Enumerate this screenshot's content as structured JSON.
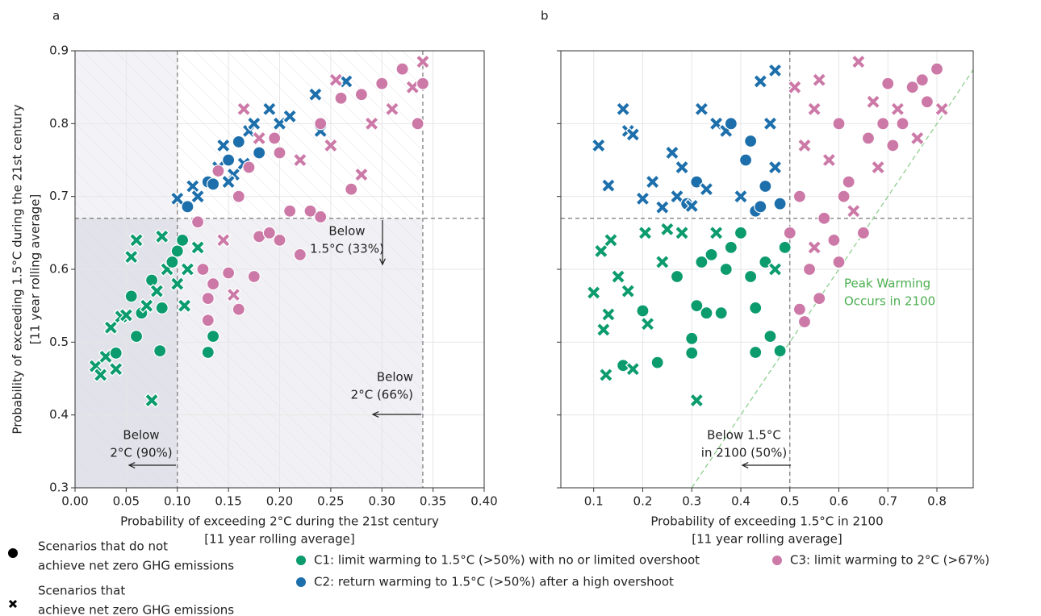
{
  "chart_data": [
    {
      "type": "scatter",
      "label": "a",
      "xlabel": [
        "Probability of exceeding 2°C during the 21st century",
        "[11 year rolling average]"
      ],
      "ylabel": [
        "Probability of exceeding 1.5°C during the 21st century",
        "[11 year rolling average]"
      ],
      "xlim": [
        0,
        0.4
      ],
      "ylim": [
        0.3,
        0.9
      ],
      "xticks": [
        {
          "value": 0,
          "label": "0.00"
        },
        {
          "value": 0.05,
          "label": "0.05"
        },
        {
          "value": 0.1,
          "label": "0.10"
        },
        {
          "value": 0.15,
          "label": "0.15"
        },
        {
          "value": 0.2,
          "label": "0.20"
        },
        {
          "value": 0.25,
          "label": "0.25"
        },
        {
          "value": 0.3,
          "label": "0.30"
        },
        {
          "value": 0.35,
          "label": "0.35"
        },
        {
          "value": 0.4,
          "label": "0.40"
        }
      ],
      "yticks": [
        0.3,
        0.4,
        0.5,
        0.6,
        0.7,
        0.8,
        0.9
      ],
      "show_ytick_labels": true,
      "grid": true,
      "shade": true,
      "vlines": [
        0.1,
        0.34
      ],
      "hlines": [
        0.67
      ],
      "annotations": [
        {
          "lines": [
            "Below",
            "1.5°C (33%)"
          ]
        },
        {
          "lines": [
            "Below",
            "2°C (66%)"
          ]
        },
        {
          "lines": [
            "Below",
            "2°C (90%)"
          ]
        }
      ],
      "series": [
        {
          "name": "C1: limit warming to 1.5°C (>50%) with no or limited overshoot",
          "color": "#0b9b6d",
          "x": [
            0.02,
            0.025,
            0.03,
            0.035,
            0.04,
            0.04,
            0.045,
            0.05,
            0.055,
            0.055,
            0.06,
            0.06,
            0.065,
            0.07,
            0.075,
            0.075,
            0.08,
            0.083,
            0.085,
            0.085,
            0.09,
            0.095,
            0.1,
            0.1,
            0.105,
            0.107,
            0.11,
            0.13,
            0.135,
            0.12
          ],
          "values": [
            0.467,
            0.455,
            0.48,
            0.52,
            0.485,
            0.463,
            0.535,
            0.537,
            0.563,
            0.617,
            0.508,
            0.64,
            0.54,
            0.55,
            0.585,
            0.42,
            0.57,
            0.488,
            0.547,
            0.645,
            0.6,
            0.61,
            0.625,
            0.58,
            0.64,
            0.55,
            0.6,
            0.486,
            0.508,
            0.63
          ],
          "net_zero": [
            true,
            true,
            true,
            true,
            false,
            true,
            true,
            true,
            false,
            true,
            false,
            true,
            false,
            true,
            false,
            true,
            true,
            false,
            false,
            true,
            true,
            false,
            false,
            true,
            false,
            true,
            true,
            false,
            false,
            true
          ]
        },
        {
          "name": "C2: return warming to 1.5°C (>50%) after a high overshoot",
          "color": "#1d6fab",
          "x": [
            0.1,
            0.11,
            0.115,
            0.12,
            0.13,
            0.135,
            0.14,
            0.145,
            0.15,
            0.155,
            0.16,
            0.165,
            0.17,
            0.175,
            0.18,
            0.19,
            0.2,
            0.21,
            0.235,
            0.24,
            0.265,
            0.15
          ],
          "values": [
            0.697,
            0.686,
            0.714,
            0.7,
            0.72,
            0.717,
            0.74,
            0.77,
            0.75,
            0.73,
            0.775,
            0.745,
            0.79,
            0.8,
            0.76,
            0.82,
            0.8,
            0.81,
            0.84,
            0.79,
            0.858,
            0.72
          ],
          "net_zero": [
            true,
            false,
            true,
            true,
            false,
            false,
            true,
            true,
            false,
            true,
            false,
            true,
            true,
            true,
            false,
            true,
            true,
            true,
            true,
            true,
            true,
            true
          ]
        },
        {
          "name": "C3: limit warming to 2°C (>67%)",
          "color": "#cc79a7",
          "x": [
            0.12,
            0.125,
            0.13,
            0.13,
            0.135,
            0.14,
            0.145,
            0.15,
            0.155,
            0.16,
            0.16,
            0.17,
            0.175,
            0.18,
            0.18,
            0.19,
            0.2,
            0.2,
            0.21,
            0.22,
            0.23,
            0.24,
            0.24,
            0.25,
            0.26,
            0.27,
            0.28,
            0.28,
            0.29,
            0.3,
            0.31,
            0.32,
            0.33,
            0.335,
            0.34,
            0.34,
            0.22,
            0.165,
            0.195,
            0.255
          ],
          "values": [
            0.665,
            0.6,
            0.53,
            0.56,
            0.58,
            0.735,
            0.64,
            0.595,
            0.565,
            0.545,
            0.7,
            0.74,
            0.59,
            0.645,
            0.78,
            0.65,
            0.64,
            0.76,
            0.68,
            0.75,
            0.68,
            0.672,
            0.8,
            0.77,
            0.835,
            0.71,
            0.73,
            0.84,
            0.8,
            0.855,
            0.82,
            0.875,
            0.85,
            0.8,
            0.885,
            0.855,
            0.62,
            0.82,
            0.78,
            0.86
          ],
          "net_zero": [
            false,
            false,
            false,
            false,
            false,
            false,
            true,
            false,
            true,
            false,
            false,
            false,
            false,
            false,
            true,
            false,
            false,
            false,
            false,
            true,
            false,
            false,
            false,
            true,
            false,
            false,
            true,
            false,
            true,
            false,
            true,
            false,
            true,
            false,
            true,
            false,
            false,
            true,
            false,
            true
          ]
        }
      ]
    },
    {
      "type": "scatter",
      "label": "b",
      "xlabel": [
        "Probability of exceeding 1.5°C in 2100",
        "[11 year rolling average]"
      ],
      "xlim": [
        0.033,
        0.874
      ],
      "ylim": [
        0.3,
        0.9
      ],
      "xticks": [
        0.1,
        0.2,
        0.3,
        0.4,
        0.5,
        0.6,
        0.7,
        0.8
      ],
      "yticks": [
        0.3,
        0.4,
        0.5,
        0.6,
        0.7,
        0.8,
        0.9
      ],
      "show_ytick_labels": false,
      "grid": true,
      "shade": false,
      "vlines": [
        0.5
      ],
      "hlines": [
        0.67
      ],
      "identity_line": "#8fcf8f",
      "annotations": [
        {
          "lines": [
            "Below 1.5°C",
            "in 2100 (50%)"
          ]
        },
        {
          "lines": [
            "Peak Warming",
            "Occurs in 2100"
          ],
          "color": "#4caf50"
        }
      ],
      "series": [
        {
          "color": "#0b9b6d",
          "x": [
            0.1,
            0.115,
            0.12,
            0.125,
            0.13,
            0.135,
            0.15,
            0.16,
            0.17,
            0.18,
            0.2,
            0.205,
            0.21,
            0.23,
            0.24,
            0.25,
            0.27,
            0.28,
            0.3,
            0.3,
            0.31,
            0.31,
            0.32,
            0.33,
            0.34,
            0.35,
            0.36,
            0.37,
            0.38,
            0.4,
            0.42,
            0.43,
            0.43,
            0.45,
            0.46,
            0.47,
            0.48,
            0.49
          ],
          "values": [
            0.568,
            0.625,
            0.517,
            0.455,
            0.538,
            0.64,
            0.59,
            0.468,
            0.57,
            0.463,
            0.543,
            0.65,
            0.525,
            0.472,
            0.61,
            0.655,
            0.59,
            0.65,
            0.505,
            0.485,
            0.42,
            0.55,
            0.61,
            0.54,
            0.62,
            0.65,
            0.54,
            0.6,
            0.63,
            0.65,
            0.59,
            0.486,
            0.547,
            0.61,
            0.508,
            0.6,
            0.488,
            0.63
          ],
          "net_zero": [
            true,
            true,
            true,
            true,
            true,
            true,
            true,
            false,
            true,
            true,
            false,
            true,
            true,
            false,
            true,
            true,
            false,
            true,
            false,
            false,
            true,
            false,
            false,
            false,
            false,
            true,
            false,
            false,
            false,
            false,
            false,
            false,
            false,
            false,
            false,
            true,
            false,
            false
          ]
        },
        {
          "color": "#1d6fab",
          "x": [
            0.11,
            0.13,
            0.16,
            0.17,
            0.18,
            0.2,
            0.22,
            0.24,
            0.26,
            0.27,
            0.28,
            0.29,
            0.3,
            0.31,
            0.32,
            0.33,
            0.35,
            0.37,
            0.38,
            0.4,
            0.41,
            0.42,
            0.43,
            0.44,
            0.44,
            0.45,
            0.46,
            0.47,
            0.48,
            0.47
          ],
          "values": [
            0.77,
            0.715,
            0.82,
            0.79,
            0.785,
            0.697,
            0.72,
            0.685,
            0.76,
            0.7,
            0.74,
            0.69,
            0.687,
            0.72,
            0.82,
            0.71,
            0.8,
            0.79,
            0.8,
            0.7,
            0.75,
            0.776,
            0.68,
            0.858,
            0.686,
            0.714,
            0.8,
            0.873,
            0.69,
            0.74
          ],
          "net_zero": [
            true,
            true,
            true,
            true,
            true,
            true,
            true,
            true,
            true,
            true,
            true,
            false,
            true,
            false,
            true,
            true,
            true,
            true,
            false,
            true,
            false,
            false,
            false,
            true,
            false,
            false,
            true,
            true,
            false,
            true
          ]
        },
        {
          "color": "#cc79a7",
          "x": [
            0.5,
            0.51,
            0.52,
            0.52,
            0.53,
            0.53,
            0.54,
            0.55,
            0.56,
            0.56,
            0.57,
            0.58,
            0.59,
            0.6,
            0.6,
            0.62,
            0.63,
            0.64,
            0.65,
            0.66,
            0.67,
            0.68,
            0.7,
            0.71,
            0.72,
            0.73,
            0.75,
            0.76,
            0.77,
            0.78,
            0.8,
            0.81,
            0.55,
            0.61,
            0.69
          ],
          "values": [
            0.65,
            0.85,
            0.545,
            0.7,
            0.528,
            0.77,
            0.6,
            0.82,
            0.56,
            0.86,
            0.67,
            0.75,
            0.64,
            0.61,
            0.8,
            0.72,
            0.68,
            0.885,
            0.65,
            0.78,
            0.83,
            0.74,
            0.855,
            0.77,
            0.82,
            0.8,
            0.85,
            0.78,
            0.86,
            0.83,
            0.875,
            0.82,
            0.63,
            0.7,
            0.8
          ],
          "net_zero": [
            false,
            true,
            false,
            false,
            false,
            true,
            false,
            true,
            false,
            true,
            false,
            true,
            false,
            false,
            false,
            false,
            true,
            true,
            false,
            false,
            true,
            true,
            false,
            false,
            true,
            false,
            false,
            true,
            false,
            false,
            false,
            true,
            true,
            false,
            false
          ]
        }
      ]
    }
  ],
  "marker_legend": [
    {
      "net_zero": false,
      "lines": [
        "Scenarios that do not",
        "achieve net zero GHG emissions"
      ]
    },
    {
      "net_zero": true,
      "lines": [
        "Scenarios that",
        "achieve net zero GHG emissions"
      ]
    }
  ]
}
